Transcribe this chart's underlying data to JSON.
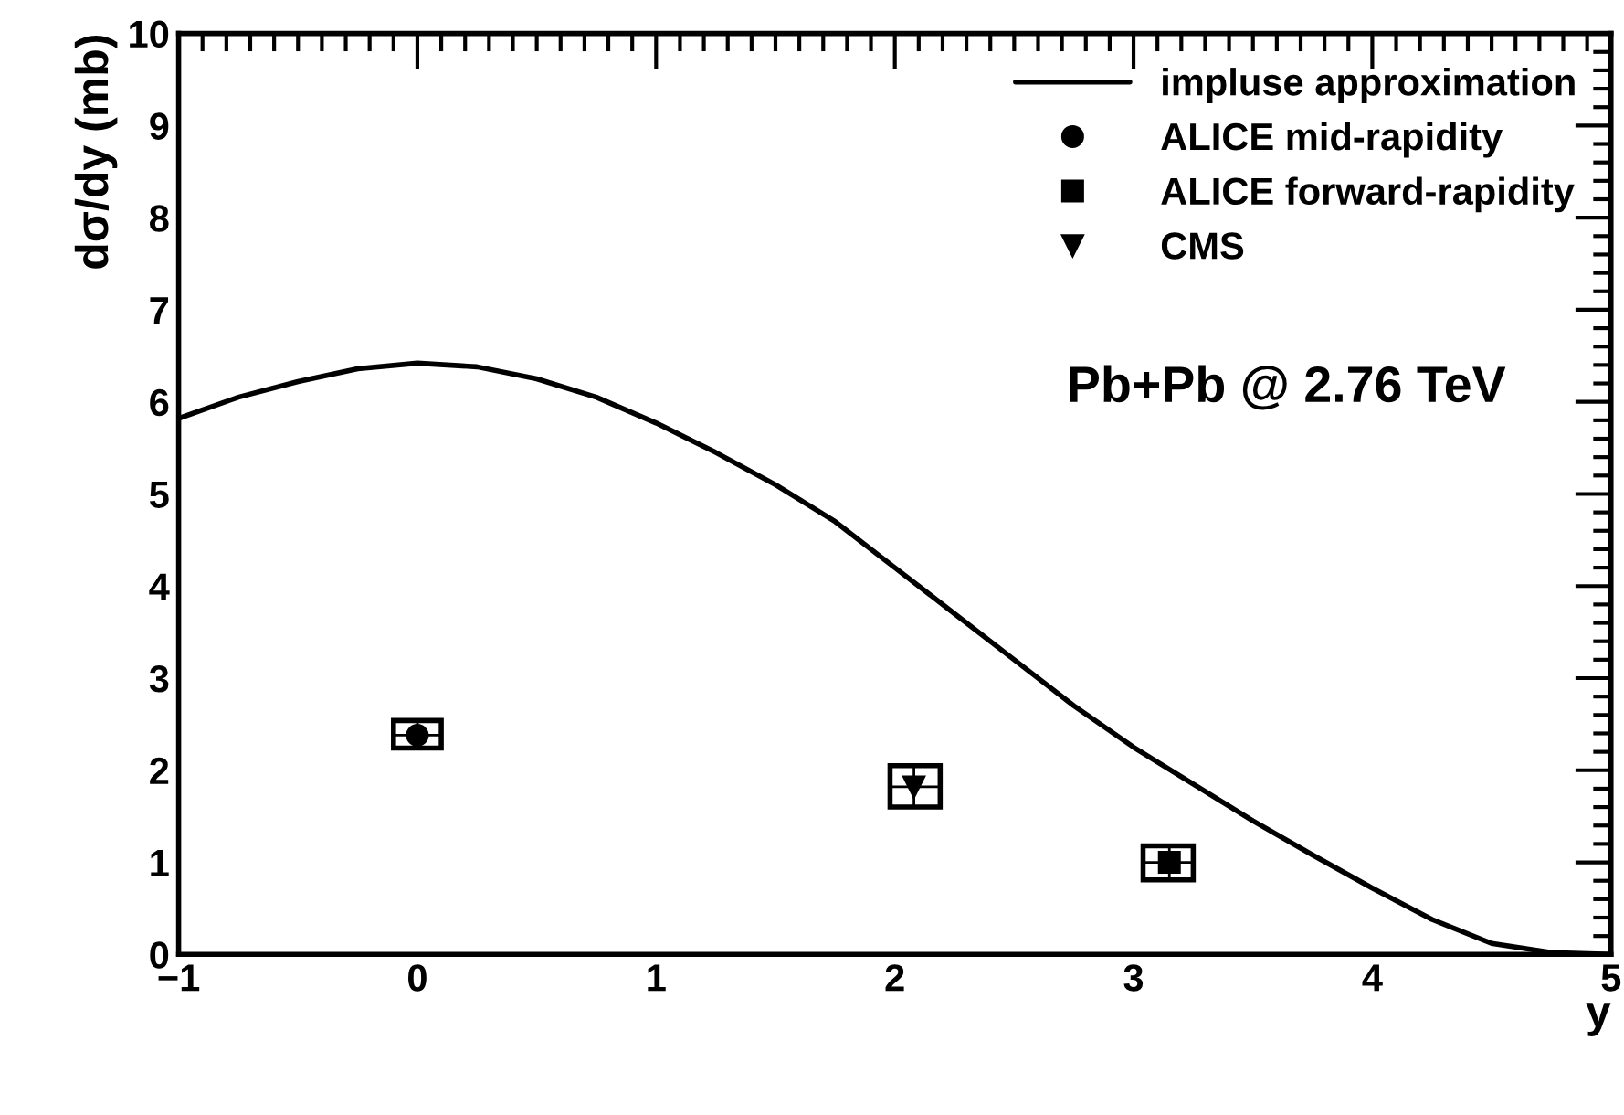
{
  "chart_data": {
    "type": "line",
    "xlabel": "y",
    "ylabel": "dσ/dy (mb)",
    "xlim": [
      -1,
      5
    ],
    "ylim": [
      0,
      10
    ],
    "xticks": [
      {
        "value": -1,
        "label": "−1"
      },
      0,
      1,
      2,
      3,
      4,
      5
    ],
    "yticks": [
      0,
      1,
      2,
      3,
      4,
      5,
      6,
      7,
      8,
      9,
      10
    ],
    "grid": false,
    "legend": "top right",
    "annotations": [
      "Pb+Pb @ 2.76 TeV"
    ],
    "series": [
      {
        "name": "impluse approximation",
        "color": "#000000",
        "marker": "none",
        "line_style": "solid",
        "x": [
          -1,
          -0.75,
          -0.5,
          -0.25,
          0,
          0.25,
          0.5,
          0.75,
          1,
          1.25,
          1.5,
          1.75,
          2,
          2.25,
          2.5,
          2.75,
          3,
          3.25,
          3.5,
          3.75,
          4,
          4.25,
          4.5,
          4.75,
          5
        ],
        "values": [
          5.82,
          6.05,
          6.22,
          6.36,
          6.42,
          6.38,
          6.25,
          6.05,
          5.77,
          5.45,
          5.1,
          4.7,
          4.2,
          3.7,
          3.2,
          2.7,
          2.25,
          1.85,
          1.45,
          1.08,
          0.72,
          0.38,
          0.12,
          0.02,
          0
        ]
      },
      {
        "name": "ALICE mid-rapidity",
        "type": "scatter",
        "color": "#000000",
        "marker": "circle",
        "x": [
          0.0
        ],
        "values": [
          2.38
        ],
        "errors": [
          [
            2.24,
            2.54
          ]
        ],
        "xerrors": [
          [
            -0.1,
            0.1
          ]
        ]
      },
      {
        "name": "ALICE forward-rapidity",
        "type": "scatter",
        "color": "#000000",
        "marker": "square",
        "x": [
          3.15
        ],
        "values": [
          1.0
        ],
        "errors": [
          [
            0.81,
            1.18
          ]
        ],
        "xerrors": [
          [
            3.04,
            3.25
          ]
        ]
      },
      {
        "name": "CMS",
        "type": "scatter",
        "color": "#000000",
        "marker": "triangle",
        "x": [
          2.08
        ],
        "values": [
          1.82
        ],
        "errors": [
          [
            1.6,
            2.05
          ]
        ],
        "xerrors": [
          [
            1.98,
            2.19
          ]
        ]
      }
    ]
  }
}
